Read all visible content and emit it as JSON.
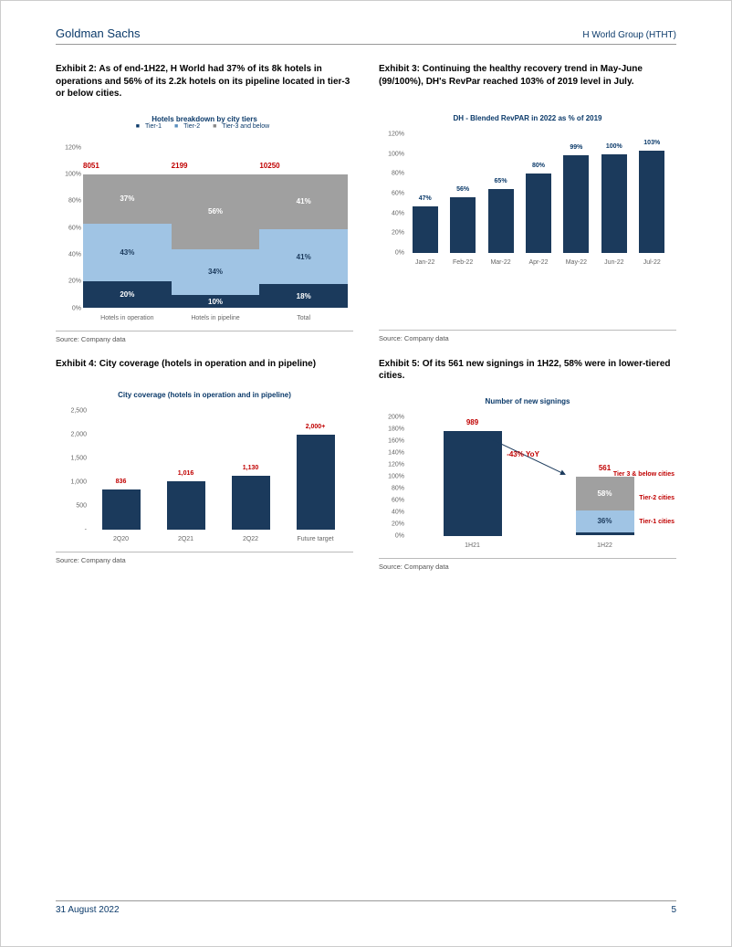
{
  "header": {
    "left": "Goldman Sachs",
    "right": "H World Group (HTHT)"
  },
  "footer": {
    "date": "31 August 2022",
    "page": "5"
  },
  "ex2": {
    "title": "Exhibit 2: As of end-1H22, H World had 37% of its 8k hotels in operations and 56% of its 2.2k hotels on its pipeline located in tier-3 or below cities.",
    "chart_title": "Hotels breakdown by city tiers",
    "legend": [
      "Tier-1",
      "Tier-2",
      "Tier-3 and below"
    ],
    "ylim": [
      0,
      120
    ],
    "ytick_step": 20,
    "categories": [
      "Hotels in operation",
      "Hotels in pipeline",
      "Total"
    ],
    "totals": [
      "8051",
      "2199",
      "10250"
    ],
    "stacks": [
      {
        "grey": "37%",
        "lblue": "43%",
        "navy": "20%",
        "h": {
          "grey": 37,
          "lblue": 43,
          "navy": 20
        }
      },
      {
        "grey": "56%",
        "lblue": "34%",
        "navy": "10%",
        "h": {
          "grey": 56,
          "lblue": 34,
          "navy": 10
        }
      },
      {
        "grey": "41%",
        "lblue": "41%",
        "navy": "18%",
        "h": {
          "grey": 41,
          "lblue": 41,
          "navy": 18
        }
      }
    ],
    "colors": {
      "grey": "#a0a0a0",
      "lblue": "#a0c4e4",
      "navy": "#1b3a5c"
    },
    "source": "Source: Company data"
  },
  "ex3": {
    "title": "Exhibit 3: Continuing the healthy recovery trend in May-June (99/100%), DH's RevPar reached 103% of 2019 level in July.",
    "chart_title": "DH - Blended RevPAR in 2022 as % of 2019",
    "ylim": [
      0,
      120
    ],
    "ytick_step": 20,
    "categories": [
      "Jan-22",
      "Feb-22",
      "Mar-22",
      "Apr-22",
      "May-22",
      "Jun-22",
      "Jul-22"
    ],
    "values": [
      47,
      56,
      65,
      80,
      99,
      100,
      103
    ],
    "labels": [
      "47%",
      "56%",
      "65%",
      "80%",
      "99%",
      "100%",
      "103%"
    ],
    "bar_color": "#1b3a5c",
    "source": "Source: Company data"
  },
  "ex4": {
    "title": "Exhibit 4: City coverage (hotels in operation and in pipeline)",
    "chart_title": "City coverage (hotels in operation and in pipeline)",
    "ylim": [
      0,
      2500
    ],
    "ytick_step": 500,
    "categories": [
      "2Q20",
      "2Q21",
      "2Q22",
      "Future target"
    ],
    "values": [
      836,
      1016,
      1130,
      2000
    ],
    "labels": [
      "836",
      "1,016",
      "1,130",
      "2,000+"
    ],
    "bar_color": "#1b3a5c",
    "source": "Source: Company data"
  },
  "ex5": {
    "title": "Exhibit 5: Of its 561 new signings in 1H22, 58% were in lower-tiered cities.",
    "chart_title": "Number of new signings",
    "ylim": [
      0,
      200
    ],
    "ytick_step": 20,
    "categories": [
      "1H21",
      "1H22"
    ],
    "bars": [
      {
        "total": "989",
        "h": 176,
        "type": "solid"
      },
      {
        "total": "561",
        "h": 100,
        "type": "stack",
        "grey": "58%",
        "lblue": "36%",
        "navy": "6%",
        "gh": 58,
        "lh": 36,
        "nh": 6
      }
    ],
    "yoy": "-43% YoY",
    "side_labels": [
      "Tier 3 & below cities",
      "Tier-2 cities",
      "Tier-1 cities"
    ],
    "source": "Source: Company data"
  }
}
